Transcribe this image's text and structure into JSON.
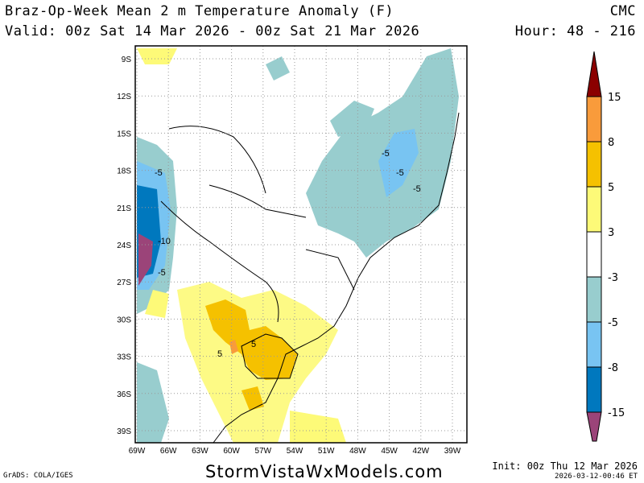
{
  "header": {
    "title": "Braz-Op-Week Mean 2 m Temperature Anomaly (F)",
    "valid": "Valid: 00z Sat 14 Mar 2026 - 00z Sat 21 Mar 2026",
    "model": "CMC",
    "hour": "Hour: 48 - 216"
  },
  "map": {
    "lat_ticks": [
      "9S",
      "12S",
      "15S",
      "18S",
      "21S",
      "24S",
      "27S",
      "30S",
      "33S",
      "36S",
      "39S"
    ],
    "lon_ticks": [
      "69W",
      "66W",
      "63W",
      "60W",
      "57W",
      "54W",
      "51W",
      "48W",
      "45W",
      "42W",
      "39W"
    ],
    "contour_labels": [
      "-5",
      "-5",
      "-5",
      "-5",
      "-10",
      "-5",
      "5",
      "5"
    ]
  },
  "colorbar": {
    "levels": [
      "15",
      "8",
      "5",
      "3",
      "-3",
      "-5",
      "-8",
      "-15"
    ],
    "colors": [
      "#8b0000",
      "#f99b3b",
      "#f5c100",
      "#fdfa78",
      "#ffffff",
      "#98cdce",
      "#78c4f2",
      "#0078be",
      "#9b4479"
    ]
  },
  "footer": {
    "grads": "GrADS: COLA/IGES",
    "site": "StormVistaWxModels.com",
    "init": "Init: 00z Thu 12 Mar 2026",
    "timestamp": "2026-03-12-00:46 ET"
  }
}
